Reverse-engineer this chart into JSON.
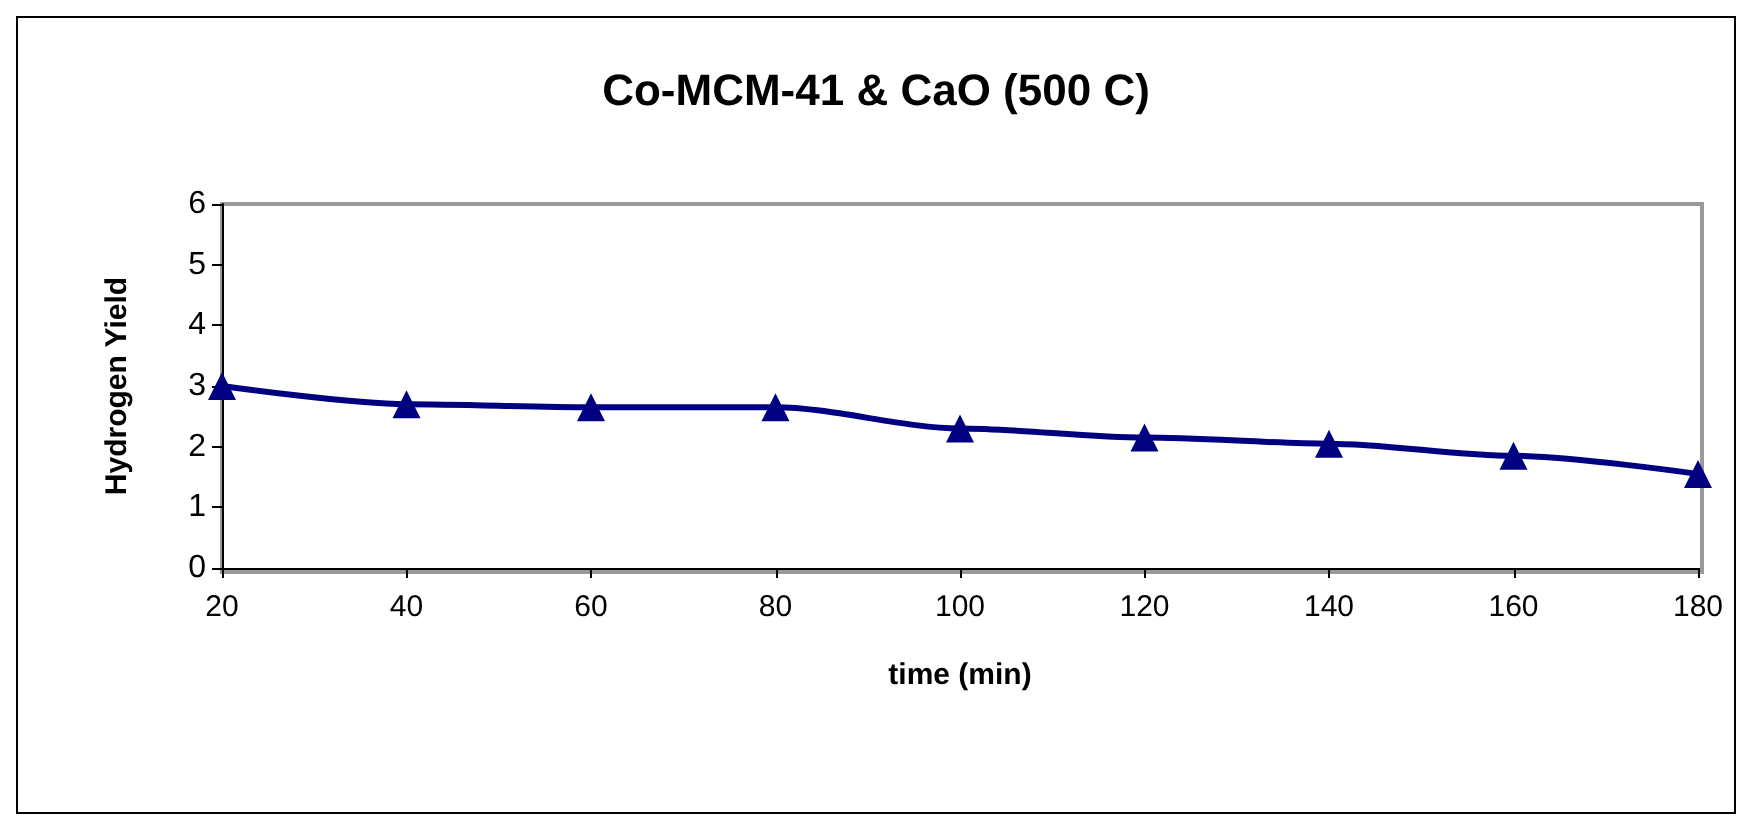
{
  "chart_data": {
    "type": "line",
    "title": "Co-MCM-41 & CaO (500 C)",
    "xlabel": "time (min)",
    "ylabel": "Hydrogen Yield",
    "x": [
      20,
      40,
      60,
      80,
      100,
      120,
      140,
      160,
      180
    ],
    "series": [
      {
        "color": "#000080",
        "values": [
          3.0,
          2.7,
          2.65,
          2.65,
          2.3,
          2.15,
          2.05,
          1.85,
          1.55
        ]
      }
    ],
    "xlim": [
      20,
      180
    ],
    "xticks": [
      20,
      40,
      60,
      80,
      100,
      120,
      140,
      160,
      180
    ],
    "ylim": [
      0,
      6
    ],
    "yticks": [
      0,
      1,
      2,
      3,
      4,
      5,
      6
    ],
    "grid": false,
    "marker": "triangle",
    "line_style": "solid"
  }
}
